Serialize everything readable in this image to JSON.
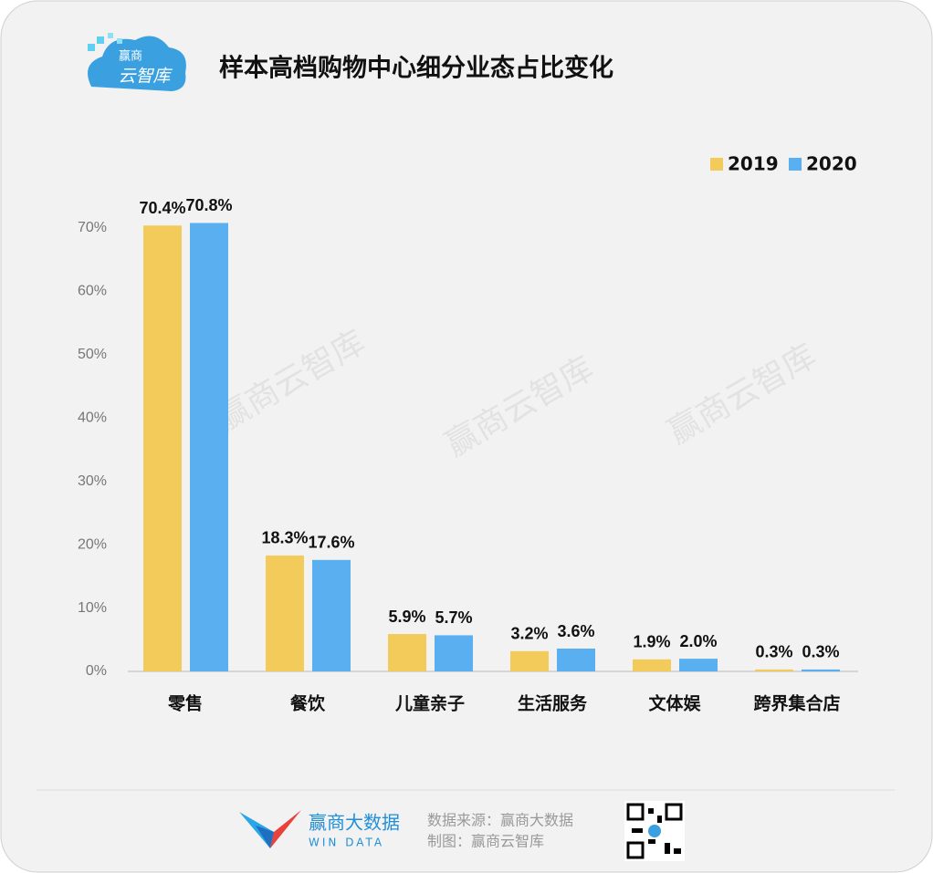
{
  "chart_data": {
    "type": "bar",
    "title": "样本高档购物中心细分业态占比变化",
    "logo": [
      "赢商",
      "云智库"
    ],
    "watermark": "赢商云智库",
    "categories": [
      "零售",
      "餐饮",
      "儿童亲子",
      "生活服务",
      "文体娱",
      "跨界集合店"
    ],
    "series": [
      {
        "name": "2019",
        "color": "#f2cb5b",
        "values": [
          70.4,
          18.3,
          5.9,
          3.2,
          1.9,
          0.3
        ],
        "value_labels": [
          "70.4%",
          "18.3%",
          "5.9%",
          "3.2%",
          "1.9%",
          "0.3%"
        ]
      },
      {
        "name": "2020",
        "color": "#5aaff0",
        "values": [
          70.8,
          17.6,
          5.7,
          3.6,
          2.0,
          0.3
        ],
        "value_labels": [
          "70.8%",
          "17.6%",
          "5.7%",
          "3.6%",
          "2.0%",
          "0.3%"
        ]
      }
    ],
    "ylim": [
      0,
      70
    ],
    "yticks": [
      {
        "value": 0,
        "label": "0%"
      },
      {
        "value": 10,
        "label": "10%"
      },
      {
        "value": 20,
        "label": "20%"
      },
      {
        "value": 30,
        "label": "30%"
      },
      {
        "value": 40,
        "label": "40%"
      },
      {
        "value": 50,
        "label": "50%"
      },
      {
        "value": 60,
        "label": "60%"
      },
      {
        "value": 70,
        "label": "70%"
      }
    ],
    "legend": "top-right",
    "footer": {
      "brand": "赢商大数据",
      "brand_en": "WIN DATA",
      "source": "数据来源：赢商大数据",
      "maker": "制图：赢商云智库"
    }
  }
}
